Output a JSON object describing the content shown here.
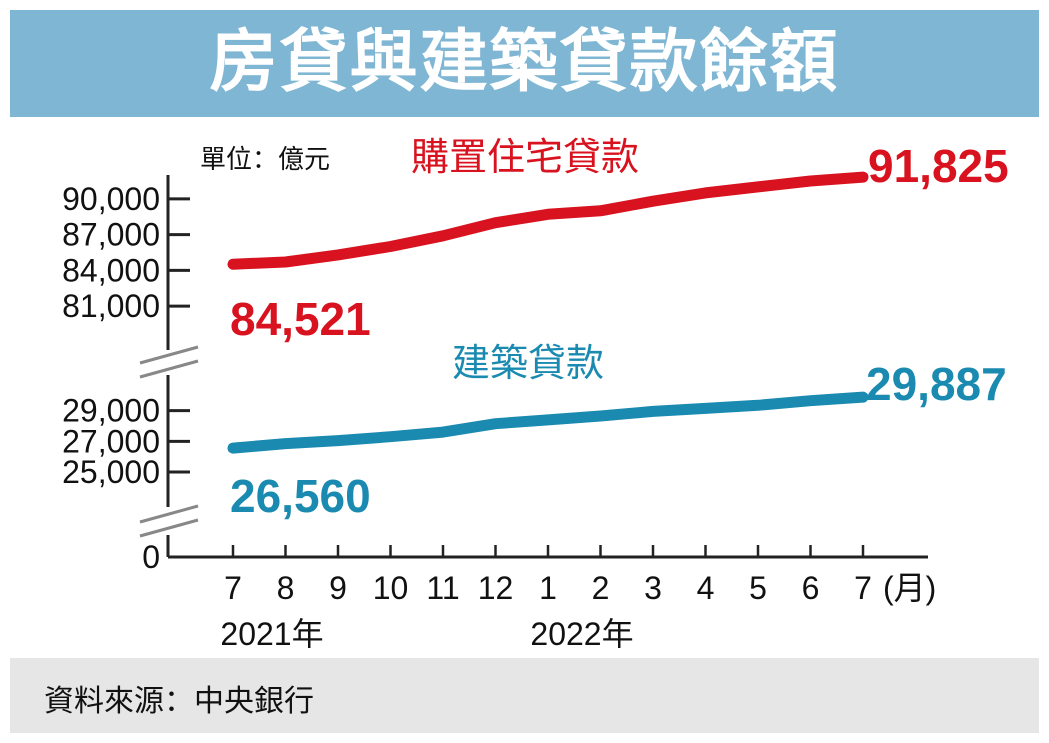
{
  "title": "房貸與建築貸款餘額",
  "source": "資料來源：中央銀行",
  "colors": {
    "banner": "#7fb6d4",
    "housing": "#d8121e",
    "construction": "#1a8ab0",
    "axis": "#222222"
  },
  "chart_data": {
    "type": "line",
    "unit_label": "單位：億元",
    "x": [
      "7",
      "8",
      "9",
      "10",
      "11",
      "12",
      "1",
      "2",
      "3",
      "4",
      "5",
      "6",
      "7"
    ],
    "x_unit": "(月)",
    "year_labels": [
      "2021年",
      "2022年"
    ],
    "y_broken_axis": true,
    "grid": false,
    "segments": [
      {
        "name": "housing",
        "ylim": [
          79000,
          92000
        ],
        "yticks": [
          "81,000",
          "84,000",
          "87,000",
          "90,000"
        ],
        "ytick_values": [
          81000,
          84000,
          87000,
          90000
        ]
      },
      {
        "name": "construction",
        "ylim": [
          23500,
          31000
        ],
        "yticks": [
          "25,000",
          "27,000",
          "29,000"
        ],
        "ytick_values": [
          25000,
          27000,
          29000
        ]
      }
    ],
    "zero_tick": "0",
    "series": [
      {
        "name": "購置住宅貸款",
        "segment": 0,
        "color": "#d8121e",
        "values": [
          84521,
          84700,
          85300,
          86000,
          86900,
          88000,
          88700,
          89000,
          89800,
          90500,
          91000,
          91500,
          91825
        ],
        "start_label": "84,521",
        "end_label": "91,825"
      },
      {
        "name": "建築貸款",
        "segment": 1,
        "color": "#1a8ab0",
        "values": [
          26560,
          26850,
          27050,
          27300,
          27600,
          28150,
          28400,
          28650,
          28950,
          29150,
          29350,
          29650,
          29887
        ],
        "start_label": "26,560",
        "end_label": "29,887"
      }
    ]
  }
}
